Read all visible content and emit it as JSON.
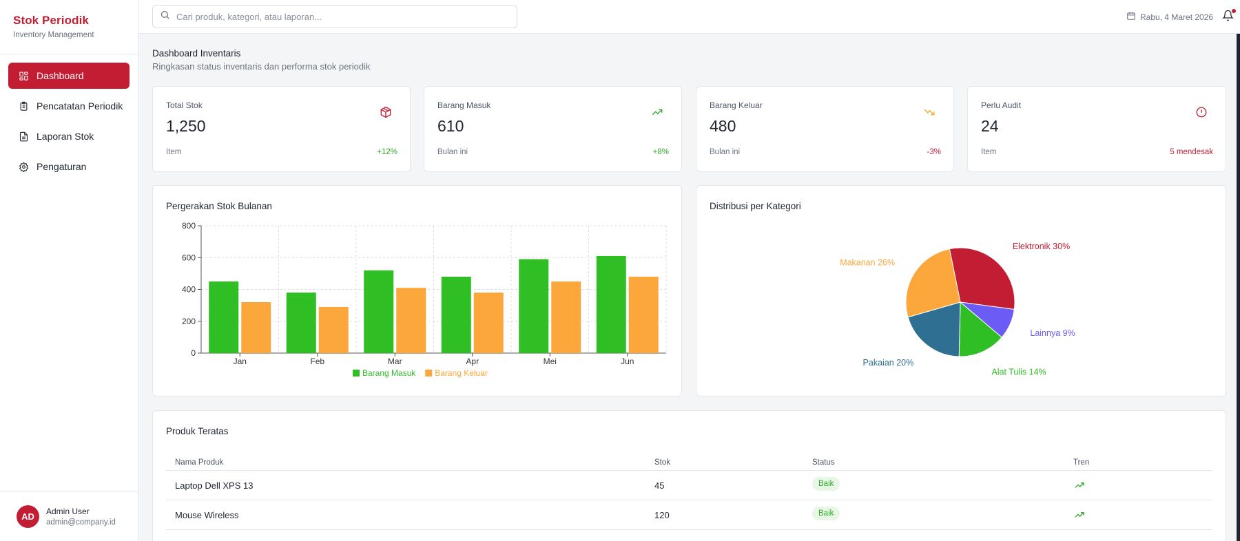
{
  "brand": {
    "title": "Stok Periodik",
    "subtitle": "Inventory Management"
  },
  "nav": [
    {
      "label": "Dashboard",
      "icon": "dashboard-icon",
      "active": true
    },
    {
      "label": "Pencatatan Periodik",
      "icon": "clipboard-icon",
      "active": false
    },
    {
      "label": "Laporan Stok",
      "icon": "file-icon",
      "active": false
    },
    {
      "label": "Pengaturan",
      "icon": "gear-icon",
      "active": false
    }
  ],
  "user": {
    "initials": "AD",
    "name": "Admin User",
    "email": "admin@company.id"
  },
  "search": {
    "placeholder": "Cari produk, kategori, atau laporan..."
  },
  "date": "Rabu, 4 Maret 2026",
  "page": {
    "title": "Dashboard Inventaris",
    "subtitle": "Ringkasan status inventaris dan performa stok periodik"
  },
  "stats": [
    {
      "label": "Total Stok",
      "value": "1,250",
      "foot": "Item",
      "delta": "+12%",
      "delta_color": "#2eaa2a",
      "icon": "box-icon",
      "icon_color": "#c21d32"
    },
    {
      "label": "Barang Masuk",
      "value": "610",
      "foot": "Bulan ini",
      "delta": "+8%",
      "delta_color": "#2eaa2a",
      "icon": "trending-up-icon",
      "icon_color": "#2eaa2a"
    },
    {
      "label": "Barang Keluar",
      "value": "480",
      "foot": "Bulan ini",
      "delta": "-3%",
      "delta_color": "#c21d32",
      "icon": "trending-down-icon",
      "icon_color": "#f5a623"
    },
    {
      "label": "Perlu Audit",
      "value": "24",
      "foot": "Item",
      "delta": "5 mendesak",
      "delta_color": "#c21d32",
      "icon": "alert-circle-icon",
      "icon_color": "#c21d32"
    }
  ],
  "bar_card_title": "Pergerakan Stok Bulanan",
  "pie_card_title": "Distribusi per Kategori",
  "chart_data": [
    {
      "type": "bar",
      "categories": [
        "Jan",
        "Feb",
        "Mar",
        "Apr",
        "Mei",
        "Jun"
      ],
      "series": [
        {
          "name": "Barang Masuk",
          "values": [
            450,
            380,
            520,
            480,
            590,
            610
          ],
          "color": "#2fbe24"
        },
        {
          "name": "Barang Keluar",
          "values": [
            320,
            290,
            410,
            380,
            450,
            480
          ],
          "color": "#fba73c"
        }
      ],
      "ylim": [
        0,
        800
      ],
      "yticks": [
        "0",
        "200",
        "400",
        "600",
        "800"
      ],
      "grid": true,
      "legend": "bottom"
    },
    {
      "type": "pie",
      "slices": [
        {
          "label": "Elektronik 30%",
          "value": 30,
          "color": "#c21d32"
        },
        {
          "label": "Lainnya 9%",
          "value": 9,
          "color": "#6b5cf6"
        },
        {
          "label": "Alat Tulis 14%",
          "value": 14,
          "color": "#2fbe24"
        },
        {
          "label": "Pakaian 20%",
          "value": 20,
          "color": "#2f6f91"
        },
        {
          "label": "Makanan 26%",
          "value": 26,
          "color": "#fba73c"
        }
      ]
    }
  ],
  "table": {
    "title": "Produk Teratas",
    "headers": [
      "Nama Produk",
      "Stok",
      "Status",
      "Tren"
    ],
    "rows": [
      {
        "name": "Laptop Dell XPS 13",
        "stock": "45",
        "status": "Baik"
      },
      {
        "name": "Mouse Wireless",
        "stock": "120",
        "status": "Baik"
      }
    ]
  }
}
